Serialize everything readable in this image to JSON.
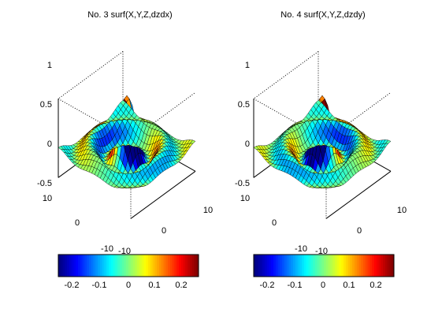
{
  "figure": {
    "background": "#ffffff"
  },
  "chart_data": [
    {
      "type": "surface",
      "title": "No. 3 surf(X,Y,Z,dzdx)",
      "x_range": [
        -10,
        10
      ],
      "y_range": [
        -10,
        10
      ],
      "z_range": [
        -0.5,
        1
      ],
      "z_ticks": [
        "1",
        "0.5",
        "0",
        "-0.5"
      ],
      "x_ticks": [
        "10",
        "0",
        "-10"
      ],
      "y_ticks": [
        "10",
        "0",
        "-10"
      ],
      "surface": "Z = sin(R)/R, R = sqrt(X^2+Y^2), colored by dZ/dX",
      "grid": true,
      "colorbar": {
        "ticks": [
          "-0.2",
          "-0.1",
          "0",
          "0.1",
          "0.2"
        ],
        "range": [
          -0.25,
          0.25
        ],
        "colormap": "jet"
      }
    },
    {
      "type": "surface",
      "title": "No. 4 surf(X,Y,Z,dzdy)",
      "x_range": [
        -10,
        10
      ],
      "y_range": [
        -10,
        10
      ],
      "z_range": [
        -0.5,
        1
      ],
      "z_ticks": [
        "1",
        "0.5",
        "0",
        "-0.5"
      ],
      "x_ticks": [
        "10",
        "0",
        "-10"
      ],
      "y_ticks": [
        "10",
        "0",
        "-10"
      ],
      "surface": "Z = sin(R)/R, R = sqrt(X^2+Y^2), colored by dZ/dY",
      "grid": true,
      "colorbar": {
        "ticks": [
          "-0.2",
          "-0.1",
          "0",
          "0.1",
          "0.2"
        ],
        "range": [
          -0.25,
          0.25
        ],
        "colormap": "jet"
      }
    }
  ]
}
